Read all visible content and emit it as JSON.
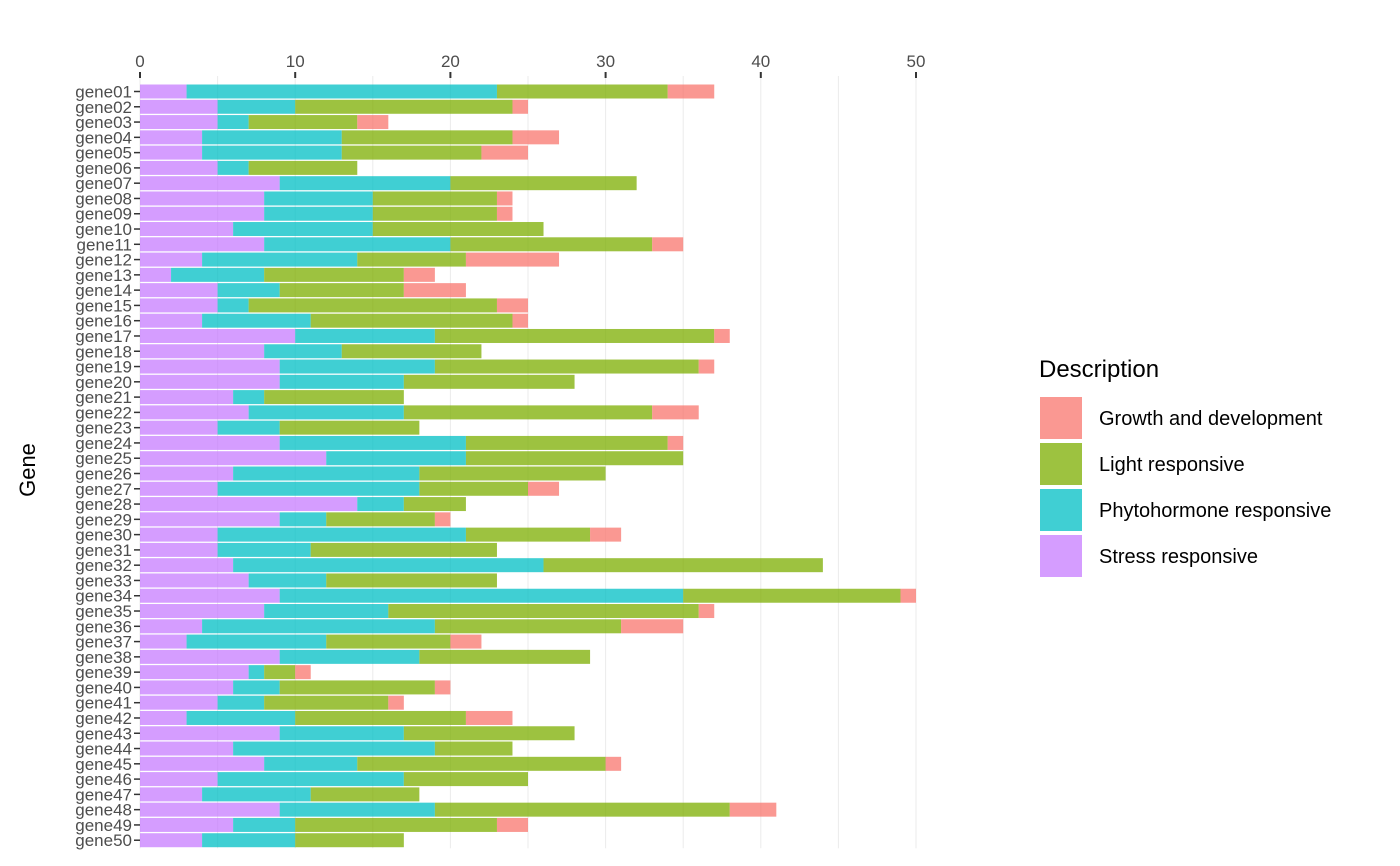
{
  "chart_data": {
    "type": "bar",
    "orientation": "horizontal",
    "stacked": true,
    "x_axis_position": "top",
    "xlabel": "",
    "ylabel": "Gene",
    "xlim": [
      0,
      50
    ],
    "x_ticks": [
      "0",
      "10",
      "20",
      "30",
      "40",
      "50"
    ],
    "grid": true,
    "legend": {
      "title": "Description",
      "position": "right",
      "entries": [
        {
          "label": "Growth and development",
          "color": "#F8766D"
        },
        {
          "label": "Light responsive",
          "color": "#7CAE00"
        },
        {
          "label": "Phytohormone responsive",
          "color": "#00BFC4"
        },
        {
          "label": "Stress responsive",
          "color": "#C77CFF"
        }
      ]
    },
    "categories": [
      "gene01",
      "gene02",
      "gene03",
      "gene04",
      "gene05",
      "gene06",
      "gene07",
      "gene08",
      "gene09",
      "gene10",
      "gene11",
      "gene12",
      "gene13",
      "gene14",
      "gene15",
      "gene16",
      "gene17",
      "gene18",
      "gene19",
      "gene20",
      "gene21",
      "gene22",
      "gene23",
      "gene24",
      "gene25",
      "gene26",
      "gene27",
      "gene28",
      "gene29",
      "gene30",
      "gene31",
      "gene32",
      "gene33",
      "gene34",
      "gene35",
      "gene36",
      "gene37",
      "gene38",
      "gene39",
      "gene40",
      "gene41",
      "gene42",
      "gene43",
      "gene44",
      "gene45",
      "gene46",
      "gene47",
      "gene48",
      "gene49",
      "gene50"
    ],
    "series": [
      {
        "name": "Stress responsive",
        "color": "#C77CFF",
        "values": [
          3,
          5,
          5,
          4,
          4,
          5,
          9,
          8,
          8,
          6,
          8,
          4,
          2,
          5,
          5,
          4,
          10,
          8,
          9,
          9,
          6,
          7,
          5,
          9,
          12,
          6,
          5,
          14,
          9,
          5,
          5,
          6,
          7,
          9,
          8,
          4,
          3,
          9,
          7,
          6,
          5,
          3,
          9,
          6,
          8,
          5,
          4,
          9,
          6,
          4
        ]
      },
      {
        "name": "Phytohormone responsive",
        "color": "#00BFC4",
        "values": [
          20,
          5,
          2,
          9,
          9,
          2,
          11,
          7,
          7,
          9,
          12,
          10,
          6,
          4,
          2,
          7,
          9,
          5,
          10,
          8,
          2,
          10,
          4,
          12,
          9,
          12,
          13,
          3,
          3,
          16,
          6,
          20,
          5,
          26,
          8,
          15,
          9,
          9,
          1,
          3,
          3,
          7,
          8,
          13,
          6,
          12,
          7,
          10,
          4,
          6
        ]
      },
      {
        "name": "Light responsive",
        "color": "#7CAE00",
        "values": [
          11,
          14,
          7,
          11,
          9,
          7,
          12,
          8,
          8,
          11,
          13,
          7,
          9,
          8,
          16,
          13,
          18,
          9,
          17,
          11,
          9,
          16,
          9,
          13,
          14,
          12,
          7,
          4,
          7,
          8,
          12,
          18,
          11,
          14,
          20,
          12,
          8,
          11,
          2,
          10,
          8,
          11,
          11,
          5,
          16,
          8,
          7,
          19,
          13,
          7
        ]
      },
      {
        "name": "Growth and development",
        "color": "#F8766D",
        "values": [
          3,
          1,
          2,
          3,
          3,
          0,
          0,
          1,
          1,
          0,
          2,
          6,
          2,
          4,
          2,
          1,
          1,
          0,
          1,
          0,
          0,
          3,
          0,
          1,
          0,
          0,
          2,
          0,
          1,
          2,
          0,
          0,
          0,
          1,
          1,
          4,
          2,
          0,
          1,
          1,
          1,
          3,
          0,
          0,
          1,
          0,
          0,
          3,
          2,
          0
        ]
      }
    ]
  }
}
